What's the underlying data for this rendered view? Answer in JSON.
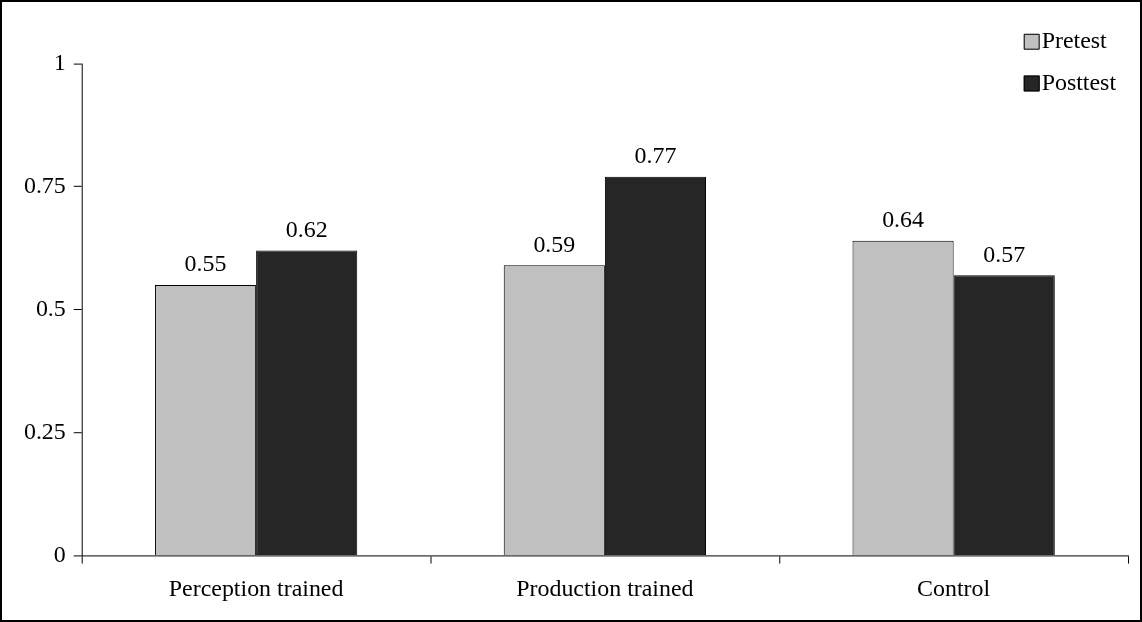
{
  "chart_data": {
    "type": "bar",
    "categories": [
      "Perception trained",
      "Production trained",
      "Control"
    ],
    "series": [
      {
        "name": "Pretest",
        "color": "#c0c0c0",
        "values": [
          0.55,
          0.59,
          0.64
        ]
      },
      {
        "name": "Posttest",
        "color": "#262626",
        "values": [
          0.62,
          0.77,
          0.57
        ]
      }
    ],
    "ylim": [
      0,
      1
    ],
    "yticks": [
      0,
      0.25,
      0.5,
      0.75,
      1
    ],
    "data_labels": true,
    "legend": "top right"
  }
}
